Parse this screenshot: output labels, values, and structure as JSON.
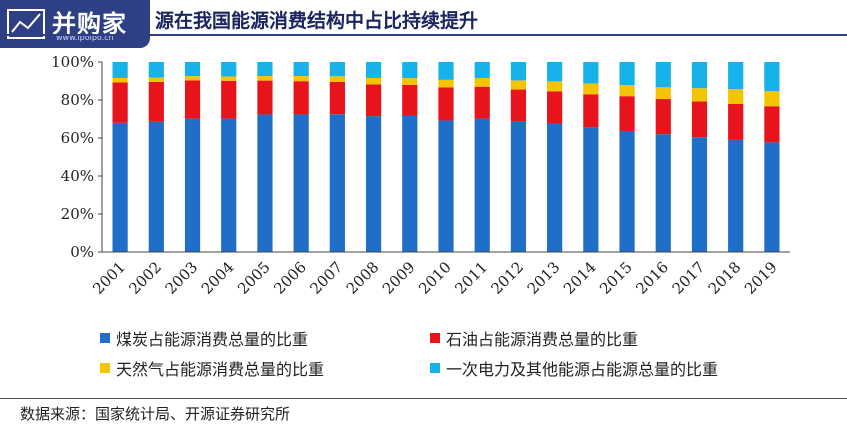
{
  "logo": {
    "text": "并购家",
    "sub": "www.ipoipo.cn"
  },
  "title": "源在我国能源消费结构中占比持续提升",
  "source": "数据来源：国家统计局、开源证券研究所",
  "chart_data": {
    "type": "bar",
    "stacked": true,
    "categories": [
      "2001",
      "2002",
      "2003",
      "2004",
      "2005",
      "2006",
      "2007",
      "2008",
      "2009",
      "2010",
      "2011",
      "2012",
      "2013",
      "2014",
      "2015",
      "2016",
      "2017",
      "2018",
      "2019"
    ],
    "y_ticks": [
      "0%",
      "20%",
      "40%",
      "60%",
      "80%",
      "100%"
    ],
    "ylim": [
      0,
      100
    ],
    "series": [
      {
        "name": "煤炭占能源消费总量的比重",
        "color": "#1f6fc9",
        "values": [
          68.0,
          68.5,
          70.2,
          70.2,
          72.4,
          72.4,
          72.5,
          71.5,
          71.6,
          69.2,
          70.2,
          68.5,
          67.4,
          65.6,
          63.7,
          62.0,
          60.4,
          59.0,
          57.7
        ]
      },
      {
        "name": "石油占能源消费总量的比重",
        "color": "#e8141b",
        "values": [
          21.2,
          21.0,
          20.1,
          19.9,
          17.8,
          17.5,
          17.0,
          16.7,
          16.4,
          17.4,
          16.8,
          17.0,
          17.1,
          17.4,
          18.3,
          18.5,
          18.8,
          18.9,
          19.0
        ]
      },
      {
        "name": "天然气占能源消费总量的比重",
        "color": "#f5c400",
        "values": [
          2.4,
          2.3,
          2.3,
          2.3,
          2.4,
          2.7,
          3.0,
          3.4,
          3.5,
          4.0,
          4.6,
          4.8,
          5.3,
          5.7,
          5.9,
          6.2,
          7.0,
          7.8,
          8.0
        ]
      },
      {
        "name": "一次电力及其他能源占能源总量的比重",
        "color": "#18b2ea",
        "values": [
          8.4,
          8.2,
          7.4,
          7.6,
          7.4,
          7.4,
          7.5,
          8.4,
          8.5,
          9.4,
          8.4,
          9.7,
          10.2,
          11.3,
          12.1,
          13.3,
          13.8,
          14.3,
          15.3
        ]
      }
    ]
  }
}
